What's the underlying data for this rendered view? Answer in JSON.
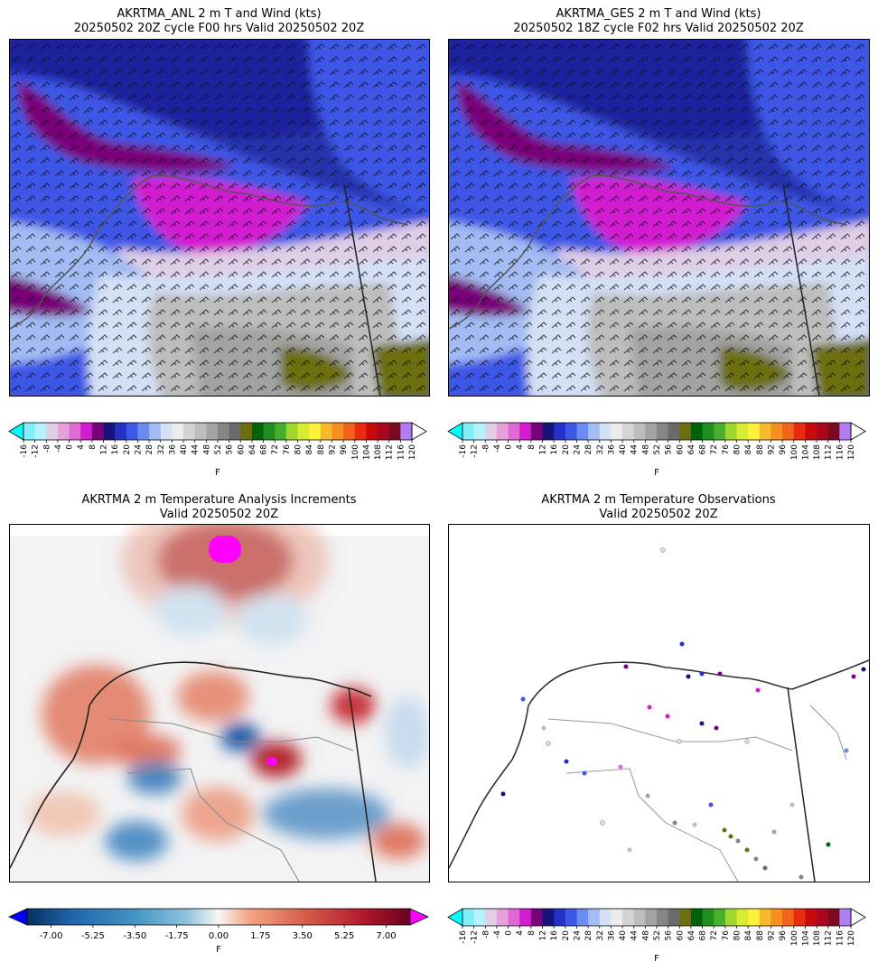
{
  "panels": {
    "anl": {
      "title": "AKRTMA_ANL 2 m T and Wind (kts)",
      "subtitle": "20250502 20Z cycle F00 hrs Valid 20250502 20Z"
    },
    "ges": {
      "title": "AKRTMA_GES 2 m T and Wind (kts)",
      "subtitle": "20250502 18Z cycle F02 hrs Valid 20250502 20Z"
    },
    "inc": {
      "title": "AKRTMA 2 m Temperature Analysis Increments",
      "subtitle": "Valid 20250502 20Z"
    },
    "obs": {
      "title": "AKRTMA 2 m Temperature Observations",
      "subtitle": "Valid 20250502 20Z"
    }
  },
  "chart_data": [
    {
      "type": "heatmap",
      "name": "temperature_colorbar",
      "unit": "F",
      "ticks": [
        -16,
        -12,
        -8,
        -4,
        0,
        4,
        8,
        12,
        16,
        20,
        24,
        28,
        32,
        36,
        40,
        44,
        48,
        52,
        56,
        60,
        64,
        68,
        72,
        76,
        80,
        84,
        88,
        92,
        96,
        100,
        104,
        108,
        112,
        116,
        120
      ],
      "tick_labels": [
        "-16",
        "-12",
        "-8",
        "-4",
        "0",
        "4",
        "8",
        "12",
        "16",
        "20",
        "24",
        "28",
        "32",
        "36",
        "40",
        "44",
        "48",
        "52",
        "56",
        "60",
        "64",
        "68",
        "72",
        "76",
        "80",
        "84",
        "88",
        "92",
        "96",
        "100",
        "104",
        "108",
        "112",
        "116",
        "120"
      ],
      "colors": [
        "#7ff0f7",
        "#b6f2fb",
        "#e0cde6",
        "#e7a0d8",
        "#e06ad4",
        "#d21ad2",
        "#7a007a",
        "#14147a",
        "#2530c8",
        "#3d57e6",
        "#6a8cf0",
        "#a3bcf4",
        "#d3e0f6",
        "#ececec",
        "#d4d4d4",
        "#bdbdbd",
        "#a3a3a3",
        "#868686",
        "#6a6a6a",
        "#6d6e10",
        "#00630a",
        "#1f8f21",
        "#48ae2c",
        "#a0d72e",
        "#d6ec35",
        "#fff13a",
        "#f8b92d",
        "#f68f1f",
        "#f2641a",
        "#ea2a11",
        "#c90a0a",
        "#a8071d",
        "#7a0b22",
        "#b07ef2"
      ],
      "under_color": "#00ffff",
      "over_color": "#ffffff"
    },
    {
      "type": "heatmap",
      "name": "increment_colorbar",
      "unit": "F",
      "range": [
        -8,
        8
      ],
      "ticks": [
        -7.0,
        -5.25,
        -3.5,
        -1.75,
        0.0,
        1.75,
        3.5,
        5.25,
        7.0
      ],
      "tick_labels": [
        "-7.00",
        "-5.25",
        "-3.50",
        "-1.75",
        "0.00",
        "1.75",
        "3.50",
        "5.25",
        "7.00"
      ],
      "under_color": "#0000ff",
      "over_color": "#ff00ff"
    }
  ]
}
